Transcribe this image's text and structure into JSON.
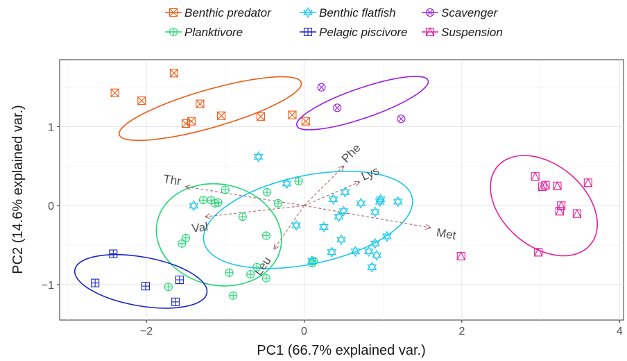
{
  "chart_data": {
    "type": "scatter",
    "title": "",
    "xlabel": "PC1 (66.7% explained var.)",
    "ylabel": "PC2 (14.6% explained var.)",
    "xlim": [
      -3.1,
      4.05
    ],
    "ylim": [
      -1.45,
      1.85
    ],
    "xticks": [
      -2,
      0,
      2,
      4
    ],
    "yticks": [
      -1,
      0,
      1
    ],
    "grid": true,
    "legend_position": "top",
    "series": [
      {
        "name": "Benthic predator",
        "color": "#f05a14",
        "marker": "square-cross",
        "points": [
          [
            -2.4,
            1.43
          ],
          [
            -2.06,
            1.33
          ],
          [
            -1.65,
            1.68
          ],
          [
            -1.5,
            1.04
          ],
          [
            -1.43,
            1.07
          ],
          [
            -1.32,
            1.29
          ],
          [
            -1.05,
            1.14
          ],
          [
            -0.55,
            1.13
          ],
          [
            -0.15,
            1.15
          ],
          [
            0.02,
            1.07
          ]
        ],
        "ellipse": {
          "cx": -1.19,
          "cy": 1.23,
          "rx": 1.2,
          "ry": 0.24,
          "angle_deg": -16
        }
      },
      {
        "name": "Planktivore",
        "color": "#22d874",
        "marker": "circle-plus",
        "points": [
          [
            -1.72,
            -1.03
          ],
          [
            -1.55,
            -0.48
          ],
          [
            -1.5,
            -0.41
          ],
          [
            -1.28,
            0.07
          ],
          [
            -1.18,
            0.07
          ],
          [
            -1.13,
            0.03
          ],
          [
            -1.09,
            0.04
          ],
          [
            -1.0,
            0.2
          ],
          [
            -0.95,
            -0.85
          ],
          [
            -0.9,
            -1.14
          ],
          [
            -0.78,
            -0.14
          ],
          [
            -0.68,
            -0.87
          ],
          [
            -0.6,
            -0.78
          ],
          [
            -0.47,
            0.17
          ],
          [
            -0.48,
            -0.38
          ],
          [
            -0.48,
            -0.92
          ],
          [
            -0.33,
            0.03
          ],
          [
            -0.07,
            0.31
          ],
          [
            0.12,
            -0.7
          ],
          [
            0.1,
            -0.73
          ]
        ],
        "ellipse": {
          "cx": -1.08,
          "cy": -0.37,
          "rx": 0.8,
          "ry": 0.64,
          "angle_deg": 12
        }
      },
      {
        "name": "Benthic flatfish",
        "color": "#19c8ea",
        "marker": "hexagram",
        "points": [
          [
            -0.58,
            0.62
          ],
          [
            -1.4,
            0.0
          ],
          [
            -0.22,
            0.28
          ],
          [
            -0.1,
            -0.25
          ],
          [
            0.1,
            -0.7
          ],
          [
            0.25,
            -0.27
          ],
          [
            0.35,
            -0.59
          ],
          [
            0.37,
            0.08
          ],
          [
            0.44,
            -0.14
          ],
          [
            0.47,
            -0.43
          ],
          [
            0.5,
            -0.07
          ],
          [
            0.52,
            0.17
          ],
          [
            0.65,
            -0.58
          ],
          [
            0.72,
            0.03
          ],
          [
            0.82,
            -0.58
          ],
          [
            0.86,
            -0.78
          ],
          [
            0.9,
            -0.48
          ],
          [
            0.9,
            -0.08
          ],
          [
            0.92,
            -0.63
          ],
          [
            0.96,
            0.05
          ],
          [
            0.97,
            0.08
          ],
          [
            1.05,
            -0.39
          ],
          [
            1.19,
            0.05
          ]
        ],
        "ellipse": {
          "cx": 0.05,
          "cy": -0.18,
          "rx": 1.35,
          "ry": 0.56,
          "angle_deg": -12
        }
      },
      {
        "name": "Pelagic piscivore",
        "color": "#1a23c8",
        "marker": "square-plus",
        "points": [
          [
            -2.42,
            -0.61
          ],
          [
            -2.65,
            -0.98
          ],
          [
            -2.01,
            -1.02
          ],
          [
            -1.63,
            -1.22
          ],
          [
            -1.58,
            -0.94
          ]
        ],
        "ellipse": {
          "cx": -2.07,
          "cy": -0.96,
          "rx": 0.85,
          "ry": 0.31,
          "angle_deg": 10
        }
      },
      {
        "name": "Scavenger",
        "color": "#9c1ee6",
        "marker": "circle-cross",
        "points": [
          [
            0.22,
            1.5
          ],
          [
            0.42,
            1.24
          ],
          [
            1.23,
            1.1
          ]
        ],
        "ellipse": {
          "cx": 0.74,
          "cy": 1.3,
          "rx": 0.88,
          "ry": 0.19,
          "angle_deg": -19
        }
      },
      {
        "name": "Suspension",
        "color": "#e51e9e",
        "marker": "square-triangle",
        "points": [
          [
            1.99,
            -0.64
          ],
          [
            2.93,
            0.37
          ],
          [
            2.97,
            -0.59
          ],
          [
            3.02,
            0.24
          ],
          [
            3.06,
            0.26
          ],
          [
            3.21,
            0.25
          ],
          [
            3.24,
            -0.07
          ],
          [
            3.26,
            0.0
          ],
          [
            3.46,
            -0.1
          ],
          [
            3.6,
            0.29
          ]
        ],
        "ellipse": {
          "cx": 3.04,
          "cy": 0.0,
          "rx": 0.77,
          "ry": 0.52,
          "angle_deg": 40
        }
      }
    ],
    "loadings": [
      {
        "label": "Phe",
        "x": 0.5,
        "y": 0.5
      },
      {
        "label": "Lys",
        "x": 0.7,
        "y": 0.3
      },
      {
        "label": "Thr",
        "x": -1.5,
        "y": 0.24
      },
      {
        "label": "Val",
        "x": -1.25,
        "y": -0.14
      },
      {
        "label": "Met",
        "x": 1.6,
        "y": -0.28
      },
      {
        "label": "Leu",
        "x": -0.38,
        "y": -0.55
      }
    ]
  }
}
